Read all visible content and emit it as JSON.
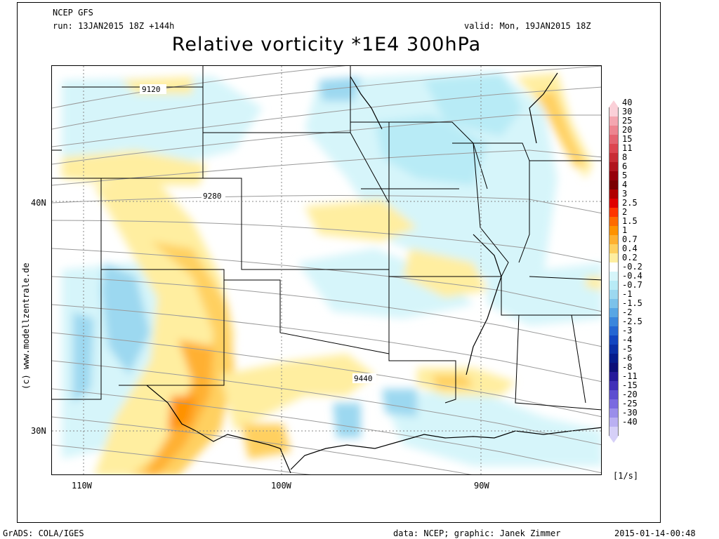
{
  "header": {
    "model": "NCEP GFS",
    "run": "run: 13JAN2015 18Z +144h",
    "valid": "valid: Mon, 19JAN2015 18Z",
    "title": "Relative vorticity *1E4 300hPa"
  },
  "map": {
    "lat_labels": [
      "40N",
      "30N"
    ],
    "lon_labels": [
      "110W",
      "100W",
      "90W"
    ],
    "contour_labels": [
      "9120",
      "9280",
      "9440"
    ],
    "unit": "[1/s]"
  },
  "colorbar": {
    "levels": [
      "40",
      "30",
      "25",
      "20",
      "15",
      "11",
      "8",
      "6",
      "5",
      "4",
      "3",
      "2.5",
      "2",
      "1.5",
      "1",
      "0.7",
      "0.4",
      "0.2",
      "-0.2",
      "-0.4",
      "-0.7",
      "-1",
      "-1.5",
      "-2",
      "-2.5",
      "-3",
      "-4",
      "-5",
      "-6",
      "-8",
      "-11",
      "-15",
      "-20",
      "-25",
      "-30",
      "-40"
    ],
    "colors": [
      "#fbd0d8",
      "#f4a6b0",
      "#ed8590",
      "#e46470",
      "#dc4650",
      "#c82d35",
      "#b0151e",
      "#95000a",
      "#7a0000",
      "#b00000",
      "#e00000",
      "#ff3500",
      "#ff6a00",
      "#ff9200",
      "#ffb030",
      "#ffd060",
      "#ffeea0",
      "#ffffff",
      "#d6f5fa",
      "#b8ebf6",
      "#9cd8f0",
      "#7cc2ea",
      "#58a6e4",
      "#3a86dc",
      "#2466d2",
      "#1245c0",
      "#0a2fa6",
      "#061c8c",
      "#0c0f78",
      "#251a9a",
      "#4030b8",
      "#5c4ed0",
      "#7a6ae0",
      "#9a8eea",
      "#bab0f2",
      "#d6d0f8"
    ]
  },
  "credit": "(c) www.modellzentrale.de",
  "footer": {
    "left": "GrADS: COLA/IGES",
    "center": "data: NCEP; graphic: Janek Zimmer",
    "right": "2015-01-14-00:48"
  }
}
